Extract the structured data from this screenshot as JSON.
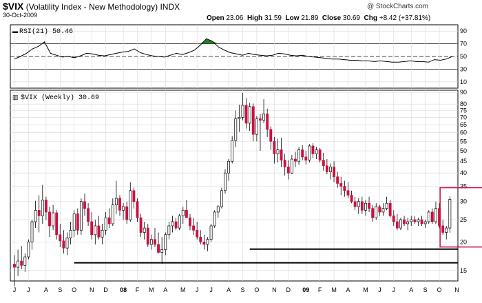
{
  "header": {
    "symbol": "$VIX",
    "name": "(Volatility Index - New Methodology)",
    "exchange": "INDX",
    "date": "30-Oct-2009",
    "watermark": "@ StockCharts.com",
    "open_label": "Open",
    "open": "23.06",
    "high_label": "High",
    "high": "31.59",
    "low_label": "Low",
    "low": "21.89",
    "close_label": "Close",
    "close": "30.69",
    "chg_label": "Chg",
    "chg": "+8.42 (+37.81%)"
  },
  "chart_data": [
    {
      "type": "line",
      "panel": "indicator",
      "legend": "RSI(21) 50.46",
      "ylim": [
        0,
        100
      ],
      "y_ticks": [
        10,
        30,
        50,
        70,
        90
      ],
      "reference_lines": [
        70,
        50,
        30
      ],
      "x": [
        0,
        1,
        2,
        3,
        4,
        5,
        6,
        7,
        8,
        9,
        10,
        11,
        12,
        13,
        14,
        15,
        16,
        17,
        18,
        19,
        20,
        21,
        22,
        23,
        24,
        25,
        26,
        27,
        28,
        29,
        30,
        31,
        32,
        33,
        34,
        35,
        36,
        37,
        38,
        39,
        40,
        41,
        42,
        43,
        44,
        45,
        46,
        47,
        48,
        49,
        50,
        51,
        52,
        53,
        54,
        55,
        56,
        57,
        58,
        59,
        60,
        61,
        62,
        63,
        64,
        65,
        66,
        67,
        68,
        69,
        70,
        71,
        72,
        73
      ],
      "values": [
        46,
        50,
        55,
        62,
        66,
        73,
        55,
        52,
        49,
        50,
        48,
        51,
        55,
        54,
        52,
        51,
        53,
        55,
        57,
        58,
        62,
        56,
        53,
        51,
        50,
        49,
        52,
        55,
        53,
        56,
        60,
        68,
        78,
        74,
        65,
        60,
        56,
        54,
        52,
        55,
        53,
        52,
        51,
        52,
        55,
        54,
        52,
        51,
        52,
        50,
        49,
        48,
        47,
        46,
        46,
        45,
        44,
        44,
        43,
        43,
        42,
        43,
        42,
        41,
        41,
        42,
        43,
        42,
        42,
        41,
        45,
        44,
        46,
        50
      ],
      "overbought_fill": {
        "from": 30,
        "to": 35
      }
    },
    {
      "type": "candlestick",
      "panel": "price",
      "legend": "$VIX (Weekly) 30.69",
      "y_scale": "log",
      "ylim": [
        13.5,
        92
      ],
      "y_ticks": [
        15,
        20,
        25,
        30,
        35,
        40,
        45,
        50,
        55,
        60,
        65,
        70,
        75,
        80,
        90
      ],
      "x_ticks": [
        "J",
        "J",
        "A",
        "S",
        "O",
        "N",
        "D",
        "08",
        "F",
        "M",
        "A",
        "M",
        "J",
        "J",
        "A",
        "S",
        "O",
        "N",
        "D",
        "09",
        "F",
        "M",
        "A",
        "M",
        "J",
        "J",
        "A",
        "S",
        "O",
        "N"
      ],
      "x_tick_weeks": [
        0,
        4,
        9,
        13,
        17,
        22,
        26,
        31,
        35,
        39,
        43,
        48,
        52,
        56,
        61,
        65,
        69,
        74,
        78,
        83,
        87,
        91,
        95,
        100,
        104,
        108,
        113,
        117,
        121,
        126
      ],
      "ohlc": [
        [
          16.0,
          17.5,
          12.8,
          15.5
        ],
        [
          15.5,
          18.5,
          14.2,
          16.5
        ],
        [
          16.5,
          19.2,
          15.2,
          15.8
        ],
        [
          15.8,
          17.8,
          14.8,
          17.2
        ],
        [
          17.2,
          20.5,
          16.8,
          20.0
        ],
        [
          20.0,
          25.0,
          18.5,
          24.5
        ],
        [
          24.5,
          30.2,
          23.0,
          27.5
        ],
        [
          27.5,
          32.0,
          22.0,
          26.0
        ],
        [
          26.0,
          35.5,
          24.0,
          30.5
        ],
        [
          30.5,
          31.5,
          25.0,
          27.0
        ],
        [
          27.0,
          28.5,
          21.0,
          23.5
        ],
        [
          23.5,
          29.0,
          22.5,
          26.8
        ],
        [
          26.8,
          27.5,
          20.5,
          21.5
        ],
        [
          21.5,
          24.0,
          19.0,
          20.2
        ],
        [
          20.2,
          22.5,
          17.8,
          18.8
        ],
        [
          18.8,
          22.0,
          17.5,
          20.8
        ],
        [
          20.8,
          24.5,
          19.5,
          22.5
        ],
        [
          22.5,
          27.5,
          21.0,
          26.5
        ],
        [
          26.5,
          28.0,
          21.5,
          22.5
        ],
        [
          22.5,
          31.0,
          21.5,
          30.0
        ],
        [
          30.0,
          32.5,
          26.0,
          28.0
        ],
        [
          28.0,
          29.5,
          23.5,
          24.5
        ],
        [
          24.5,
          27.0,
          20.5,
          21.5
        ],
        [
          21.5,
          25.0,
          19.5,
          23.5
        ],
        [
          23.5,
          26.0,
          20.5,
          21.0
        ],
        [
          21.0,
          24.0,
          19.5,
          22.5
        ],
        [
          22.5,
          27.0,
          21.5,
          25.5
        ],
        [
          25.5,
          28.0,
          23.0,
          24.0
        ],
        [
          24.0,
          31.0,
          23.5,
          29.0
        ],
        [
          29.0,
          37.0,
          26.5,
          31.0
        ],
        [
          31.0,
          32.0,
          26.0,
          27.5
        ],
        [
          27.5,
          29.5,
          25.0,
          28.5
        ],
        [
          28.5,
          30.0,
          24.0,
          25.0
        ],
        [
          25.0,
          36.5,
          24.5,
          33.5
        ],
        [
          33.5,
          34.5,
          28.0,
          30.0
        ],
        [
          30.0,
          31.0,
          24.5,
          25.5
        ],
        [
          25.5,
          26.5,
          21.0,
          22.0
        ],
        [
          22.0,
          24.5,
          20.5,
          23.0
        ],
        [
          23.0,
          24.0,
          19.0,
          19.5
        ],
        [
          19.5,
          21.5,
          18.5,
          20.5
        ],
        [
          20.5,
          23.0,
          19.0,
          19.5
        ],
        [
          19.5,
          22.0,
          17.8,
          18.0
        ],
        [
          18.0,
          21.0,
          16.0,
          18.5
        ],
        [
          18.5,
          22.0,
          17.5,
          21.5
        ],
        [
          21.5,
          24.5,
          20.5,
          23.5
        ],
        [
          23.5,
          26.0,
          22.0,
          24.5
        ],
        [
          24.5,
          25.5,
          22.5,
          23.0
        ],
        [
          23.0,
          26.5,
          22.5,
          26.0
        ],
        [
          26.0,
          28.5,
          24.0,
          27.5
        ],
        [
          27.5,
          30.5,
          26.0,
          25.5
        ],
        [
          25.5,
          26.5,
          22.5,
          23.5
        ],
        [
          23.5,
          25.5,
          21.5,
          22.5
        ],
        [
          22.5,
          24.5,
          20.5,
          21.0
        ],
        [
          21.0,
          22.5,
          19.5,
          20.0
        ],
        [
          20.0,
          21.5,
          18.5,
          19.5
        ],
        [
          19.5,
          21.0,
          18.2,
          20.5
        ],
        [
          20.5,
          24.0,
          20.0,
          23.5
        ],
        [
          23.5,
          27.5,
          23.0,
          27.0
        ],
        [
          27.0,
          29.0,
          25.5,
          28.5
        ],
        [
          28.5,
          34.5,
          28.0,
          33.5
        ],
        [
          33.5,
          41.5,
          32.5,
          40.0
        ],
        [
          40.0,
          46.0,
          37.0,
          45.0
        ],
        [
          45.0,
          58.0,
          44.0,
          55.5
        ],
        [
          55.5,
          75.0,
          52.0,
          69.0
        ],
        [
          69.0,
          79.5,
          60.5,
          70.0
        ],
        [
          70.0,
          89.5,
          68.0,
          79.0
        ],
        [
          79.0,
          85.0,
          62.5,
          66.0
        ],
        [
          66.0,
          81.0,
          61.0,
          78.0
        ],
        [
          78.0,
          80.5,
          55.0,
          59.0
        ],
        [
          59.0,
          71.0,
          55.0,
          69.0
        ],
        [
          69.0,
          72.5,
          50.0,
          68.0
        ],
        [
          68.0,
          84.0,
          66.0,
          72.5
        ],
        [
          72.5,
          76.5,
          57.5,
          62.0
        ],
        [
          62.0,
          64.0,
          50.5,
          55.0
        ],
        [
          55.0,
          57.5,
          44.0,
          48.5
        ],
        [
          48.5,
          56.5,
          44.5,
          50.5
        ],
        [
          50.5,
          57.0,
          42.5,
          45.5
        ],
        [
          45.5,
          48.5,
          39.0,
          42.5
        ],
        [
          42.5,
          45.5,
          37.5,
          40.0
        ],
        [
          40.0,
          48.0,
          39.5,
          46.0
        ],
        [
          46.0,
          49.5,
          42.5,
          45.0
        ],
        [
          45.0,
          52.0,
          43.5,
          50.5
        ],
        [
          50.5,
          53.0,
          45.5,
          47.0
        ],
        [
          47.0,
          50.0,
          43.5,
          45.5
        ],
        [
          45.5,
          53.5,
          44.5,
          52.5
        ],
        [
          52.5,
          54.0,
          46.5,
          48.5
        ],
        [
          48.5,
          52.0,
          46.0,
          50.5
        ],
        [
          50.5,
          51.5,
          44.5,
          45.5
        ],
        [
          45.5,
          49.0,
          41.0,
          43.0
        ],
        [
          43.0,
          46.0,
          39.5,
          40.5
        ],
        [
          40.5,
          44.0,
          37.5,
          42.5
        ],
        [
          42.5,
          45.0,
          36.5,
          38.5
        ],
        [
          38.5,
          40.5,
          34.5,
          36.0
        ],
        [
          36.0,
          38.5,
          32.0,
          35.0
        ],
        [
          35.0,
          37.0,
          31.5,
          33.5
        ],
        [
          33.5,
          36.5,
          31.0,
          32.0
        ],
        [
          32.0,
          33.5,
          29.5,
          30.0
        ],
        [
          30.0,
          31.5,
          27.5,
          28.5
        ],
        [
          28.5,
          31.0,
          26.5,
          30.0
        ],
        [
          30.0,
          31.5,
          26.5,
          27.5
        ],
        [
          27.5,
          30.5,
          26.0,
          29.5
        ],
        [
          29.5,
          31.5,
          27.0,
          28.0
        ],
        [
          28.0,
          29.0,
          24.5,
          25.5
        ],
        [
          25.5,
          29.5,
          25.0,
          28.5
        ],
        [
          28.5,
          29.0,
          26.0,
          27.0
        ],
        [
          27.0,
          29.5,
          26.0,
          28.0
        ],
        [
          28.0,
          31.5,
          27.5,
          29.5
        ],
        [
          29.5,
          30.5,
          25.5,
          26.0
        ],
        [
          26.0,
          27.5,
          23.5,
          24.5
        ],
        [
          24.5,
          26.5,
          22.5,
          23.0
        ],
        [
          23.0,
          25.5,
          22.5,
          25.0
        ],
        [
          25.0,
          26.0,
          23.5,
          24.0
        ],
        [
          24.0,
          25.5,
          22.5,
          24.5
        ],
        [
          24.5,
          26.0,
          23.5,
          25.0
        ],
        [
          25.0,
          26.0,
          24.0,
          24.5
        ],
        [
          24.5,
          25.5,
          23.5,
          25.0
        ],
        [
          25.0,
          26.0,
          23.5,
          24.0
        ],
        [
          24.0,
          25.0,
          23.0,
          24.5
        ],
        [
          24.5,
          27.5,
          24.0,
          27.0
        ],
        [
          27.0,
          28.0,
          24.0,
          24.5
        ],
        [
          24.5,
          30.0,
          24.0,
          28.0
        ],
        [
          28.0,
          29.5,
          23.0,
          23.5
        ],
        [
          23.5,
          25.0,
          21.5,
          22.0
        ],
        [
          22.0,
          23.5,
          20.5,
          23.0
        ],
        [
          23.0,
          31.6,
          21.9,
          30.7
        ]
      ],
      "support_lines": [
        {
          "value": 18.6,
          "from_week": 67,
          "to_week": 137
        },
        {
          "value": 16.2,
          "from_week": 17,
          "to_week": 137
        }
      ],
      "highlight_box": {
        "from_week": 122,
        "to_week": 135,
        "y_from": 19.0,
        "y_to": 34.5
      }
    }
  ],
  "colors": {
    "up_candle_body": "#ffffff",
    "down_candle_body": "#cc1040",
    "candle_outline": "#000000",
    "highlight_box": "#cc1040",
    "rsi_fill": "#2e7d32",
    "grid": "#d8d8d8"
  }
}
